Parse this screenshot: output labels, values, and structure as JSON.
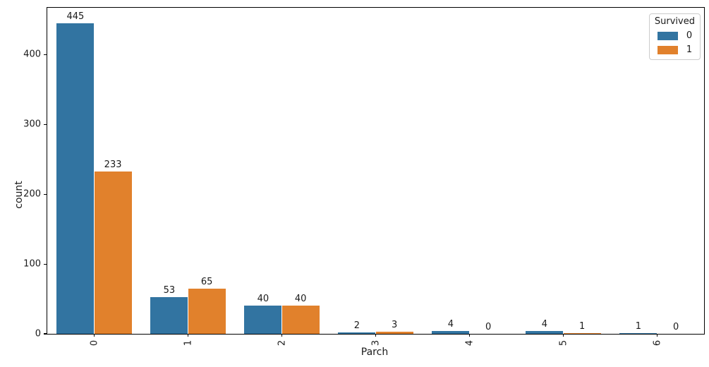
{
  "chart_data": {
    "type": "bar",
    "title": "",
    "xlabel": "Parch",
    "ylabel": "count",
    "categories": [
      "0",
      "1",
      "2",
      "3",
      "4",
      "5",
      "6"
    ],
    "series": [
      {
        "name": "0",
        "color": "#3274a1",
        "values": [
          445,
          53,
          40,
          2,
          4,
          4,
          1
        ]
      },
      {
        "name": "1",
        "color": "#e1812c",
        "values": [
          233,
          65,
          40,
          3,
          0,
          1,
          0
        ]
      }
    ],
    "bar_value_labels": [
      [
        "445",
        "53",
        "40",
        "2",
        "4",
        "4",
        "1"
      ],
      [
        "233",
        "65",
        "40",
        "3",
        "0",
        "1",
        "0"
      ]
    ],
    "ylim": [
      0,
      467.25
    ],
    "yticks": [
      0,
      100,
      200,
      300,
      400
    ],
    "xtick_rotation": 90,
    "grid": false,
    "legend": {
      "title": "Survived",
      "position": "upper right",
      "entries": [
        "0",
        "1"
      ]
    },
    "colors": {
      "survived_0": "#3274a1",
      "survived_1": "#e1812c",
      "spine": "#000000",
      "text": "#1a1a1a",
      "legend_border": "#cccccc",
      "background": "#ffffff"
    }
  }
}
